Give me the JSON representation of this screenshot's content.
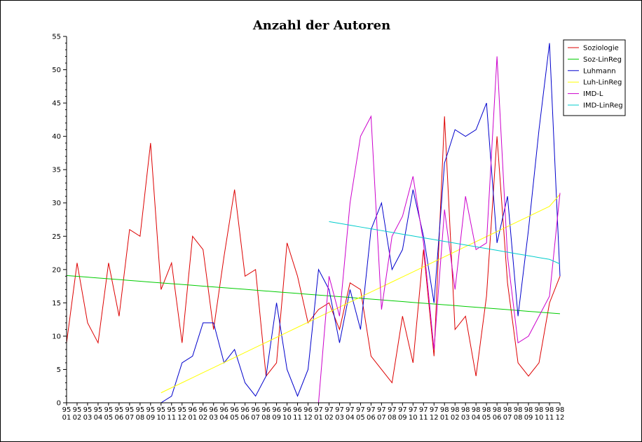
{
  "chart_data": {
    "type": "line",
    "title": "Anzahl der Autoren",
    "xlabel": "",
    "ylabel": "",
    "ylim": [
      0,
      55
    ],
    "yticks": [
      0,
      5,
      10,
      15,
      20,
      25,
      30,
      35,
      40,
      45,
      50,
      55
    ],
    "grid": false,
    "legend_position": "top-right",
    "categories": [
      [
        "95",
        "01"
      ],
      [
        "95",
        "02"
      ],
      [
        "95",
        "03"
      ],
      [
        "95",
        "04"
      ],
      [
        "95",
        "05"
      ],
      [
        "95",
        "06"
      ],
      [
        "95",
        "07"
      ],
      [
        "95",
        "08"
      ],
      [
        "95",
        "09"
      ],
      [
        "95",
        "10"
      ],
      [
        "95",
        "11"
      ],
      [
        "95",
        "12"
      ],
      [
        "96",
        "01"
      ],
      [
        "96",
        "02"
      ],
      [
        "96",
        "03"
      ],
      [
        "96",
        "04"
      ],
      [
        "96",
        "05"
      ],
      [
        "96",
        "06"
      ],
      [
        "96",
        "07"
      ],
      [
        "96",
        "08"
      ],
      [
        "96",
        "09"
      ],
      [
        "96",
        "10"
      ],
      [
        "96",
        "11"
      ],
      [
        "96",
        "12"
      ],
      [
        "97",
        "01"
      ],
      [
        "97",
        "02"
      ],
      [
        "97",
        "03"
      ],
      [
        "97",
        "04"
      ],
      [
        "97",
        "05"
      ],
      [
        "97",
        "06"
      ],
      [
        "97",
        "07"
      ],
      [
        "97",
        "08"
      ],
      [
        "97",
        "09"
      ],
      [
        "97",
        "10"
      ],
      [
        "97",
        "11"
      ],
      [
        "97",
        "12"
      ],
      [
        "98",
        "01"
      ],
      [
        "98",
        "02"
      ],
      [
        "98",
        "03"
      ],
      [
        "98",
        "04"
      ],
      [
        "98",
        "05"
      ],
      [
        "98",
        "06"
      ],
      [
        "98",
        "07"
      ],
      [
        "98",
        "08"
      ],
      [
        "98",
        "09"
      ],
      [
        "98",
        "10"
      ],
      [
        "98",
        "11"
      ],
      [
        "98",
        "12"
      ]
    ],
    "series": [
      {
        "name": "Soziologie",
        "color": "#dd0000",
        "values": [
          9,
          21,
          12,
          9,
          21,
          13,
          26,
          25,
          39,
          17,
          21,
          9,
          25,
          23,
          11,
          22,
          32,
          19,
          20,
          4,
          6,
          24,
          19,
          12,
          14,
          15,
          11,
          18,
          17,
          7,
          5,
          3,
          13,
          6,
          23,
          7,
          43,
          11,
          13,
          4,
          16,
          40,
          18,
          6,
          4,
          6,
          15,
          19
        ]
      },
      {
        "name": "Soz-LinReg",
        "color": "#00cc00",
        "values": [
          19.1,
          18.98,
          18.86,
          18.73,
          18.61,
          18.49,
          18.37,
          18.25,
          18.12,
          18,
          17.88,
          17.76,
          17.64,
          17.51,
          17.39,
          17.27,
          17.15,
          17.03,
          16.9,
          16.78,
          16.66,
          16.54,
          16.42,
          16.29,
          16.17,
          16.05,
          15.93,
          15.81,
          15.68,
          15.56,
          15.44,
          15.32,
          15.2,
          15.07,
          14.95,
          14.83,
          14.71,
          14.59,
          14.46,
          14.34,
          14.22,
          14.1,
          13.98,
          13.85,
          13.73,
          13.61,
          13.49,
          13.37
        ]
      },
      {
        "name": "Luhmann",
        "color": "#0000cc",
        "values": [
          null,
          null,
          null,
          null,
          null,
          null,
          null,
          null,
          null,
          0,
          1,
          6,
          7,
          12,
          12,
          6,
          8,
          3,
          1,
          4,
          15,
          5,
          1,
          5,
          20,
          17,
          9,
          17,
          11,
          26,
          30,
          20,
          23,
          32,
          25,
          15,
          36,
          41,
          40,
          41,
          45,
          24,
          31,
          13,
          26,
          41,
          54,
          19
        ]
      },
      {
        "name": "Luh-LinReg",
        "color": "#ffff00",
        "values": [
          null,
          null,
          null,
          null,
          null,
          null,
          null,
          null,
          null,
          1.5,
          2.26,
          3.01,
          3.77,
          4.53,
          5.28,
          6.04,
          6.79,
          7.55,
          8.31,
          9.06,
          9.82,
          10.58,
          11.33,
          12.09,
          12.85,
          13.6,
          14.36,
          15.12,
          15.87,
          16.63,
          17.38,
          18.14,
          18.9,
          19.65,
          20.41,
          21.17,
          21.92,
          22.68,
          23.44,
          24.19,
          24.95,
          25.71,
          26.46,
          27.22,
          27.97,
          28.73,
          29.49,
          31.3
        ]
      },
      {
        "name": "IMD-L",
        "color": "#cc00cc",
        "values": [
          null,
          null,
          null,
          null,
          null,
          null,
          null,
          null,
          null,
          null,
          null,
          null,
          null,
          null,
          null,
          null,
          null,
          null,
          null,
          null,
          null,
          null,
          null,
          null,
          0,
          19,
          13,
          30,
          40,
          43,
          14,
          25,
          28,
          34,
          24,
          8,
          29,
          17,
          31,
          23,
          24,
          52,
          22,
          9,
          10,
          13,
          16,
          31.5
        ]
      },
      {
        "name": "IMD-LinReg",
        "color": "#00cccc",
        "values": [
          null,
          null,
          null,
          null,
          null,
          null,
          null,
          null,
          null,
          null,
          null,
          null,
          null,
          null,
          null,
          null,
          null,
          null,
          null,
          null,
          null,
          null,
          null,
          null,
          null,
          27.2,
          26.93,
          26.66,
          26.39,
          26.12,
          25.85,
          25.58,
          25.31,
          25.04,
          24.77,
          24.5,
          24.23,
          23.96,
          23.69,
          23.42,
          23.15,
          22.88,
          22.61,
          22.34,
          22.07,
          21.8,
          21.53,
          20.85
        ]
      }
    ]
  }
}
